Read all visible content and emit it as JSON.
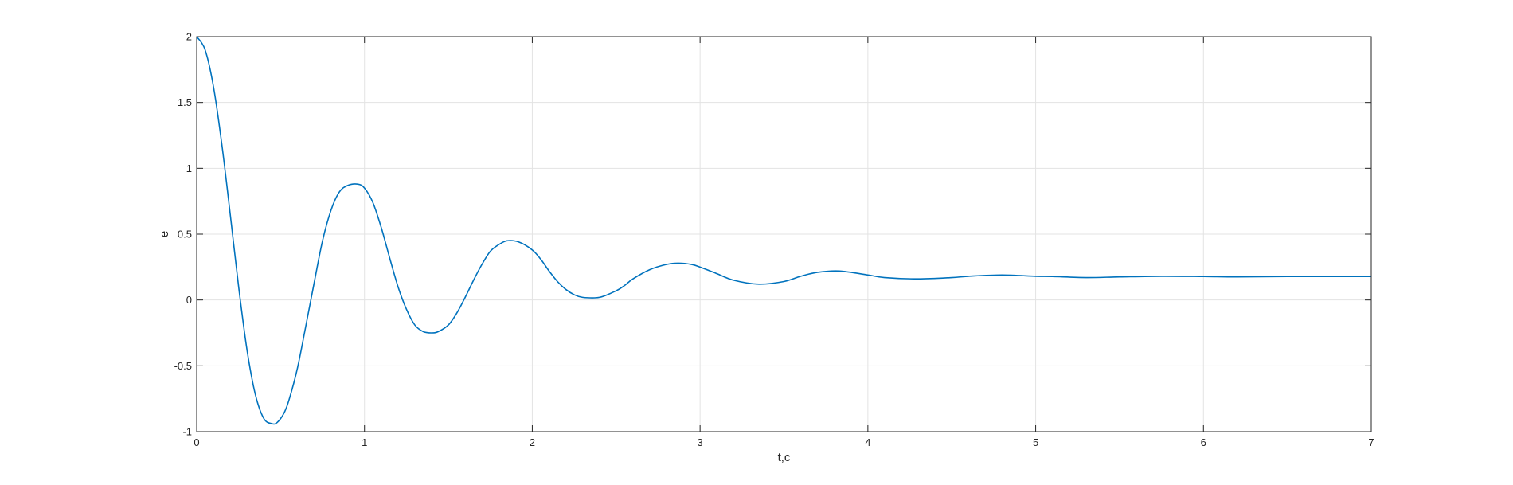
{
  "chart_data": {
    "type": "line",
    "title": "",
    "xlabel": "t,c",
    "ylabel": "e",
    "xlim": [
      0,
      7
    ],
    "ylim": [
      -1,
      2
    ],
    "xticks": [
      0,
      1,
      2,
      3,
      4,
      5,
      6,
      7
    ],
    "yticks": [
      -1,
      -0.5,
      0,
      0.5,
      1,
      1.5,
      2
    ],
    "xtick_labels": [
      "0",
      "1",
      "2",
      "3",
      "4",
      "5",
      "6",
      "7"
    ],
    "ytick_labels": [
      "-1",
      "-0.5",
      "0",
      "0.5",
      "1",
      "1.5",
      "2"
    ],
    "grid": true,
    "series": [
      {
        "color": "#0072BD",
        "x": [
          0,
          0.05,
          0.1,
          0.15,
          0.2,
          0.25,
          0.3,
          0.35,
          0.4,
          0.45,
          0.48,
          0.52,
          0.55,
          0.6,
          0.65,
          0.7,
          0.75,
          0.8,
          0.85,
          0.9,
          0.96,
          1.0,
          1.05,
          1.1,
          1.15,
          1.2,
          1.25,
          1.3,
          1.35,
          1.4,
          1.44,
          1.5,
          1.55,
          1.6,
          1.65,
          1.7,
          1.75,
          1.8,
          1.85,
          1.92,
          2.0,
          2.05,
          2.1,
          2.15,
          2.2,
          2.25,
          2.3,
          2.4,
          2.5,
          2.55,
          2.6,
          2.7,
          2.8,
          2.87,
          2.95,
          3.0,
          3.1,
          3.2,
          3.35,
          3.5,
          3.6,
          3.7,
          3.83,
          4.0,
          4.1,
          4.3,
          4.5,
          4.6,
          4.8,
          5.0,
          5.1,
          5.3,
          5.5,
          5.75,
          6.0,
          6.2,
          6.5,
          7.0
        ],
        "y": [
          2.0,
          1.9,
          1.62,
          1.18,
          0.65,
          0.1,
          -0.38,
          -0.72,
          -0.9,
          -0.94,
          -0.93,
          -0.86,
          -0.76,
          -0.52,
          -0.2,
          0.13,
          0.45,
          0.68,
          0.82,
          0.87,
          0.88,
          0.85,
          0.74,
          0.55,
          0.32,
          0.1,
          -0.07,
          -0.19,
          -0.24,
          -0.25,
          -0.24,
          -0.19,
          -0.1,
          0.02,
          0.15,
          0.27,
          0.37,
          0.42,
          0.45,
          0.44,
          0.38,
          0.31,
          0.22,
          0.14,
          0.08,
          0.04,
          0.02,
          0.02,
          0.07,
          0.11,
          0.16,
          0.23,
          0.27,
          0.28,
          0.27,
          0.25,
          0.2,
          0.15,
          0.12,
          0.14,
          0.18,
          0.21,
          0.22,
          0.19,
          0.17,
          0.16,
          0.17,
          0.18,
          0.19,
          0.18,
          0.178,
          0.17,
          0.175,
          0.18,
          0.178,
          0.175,
          0.178,
          0.178
        ]
      }
    ]
  }
}
